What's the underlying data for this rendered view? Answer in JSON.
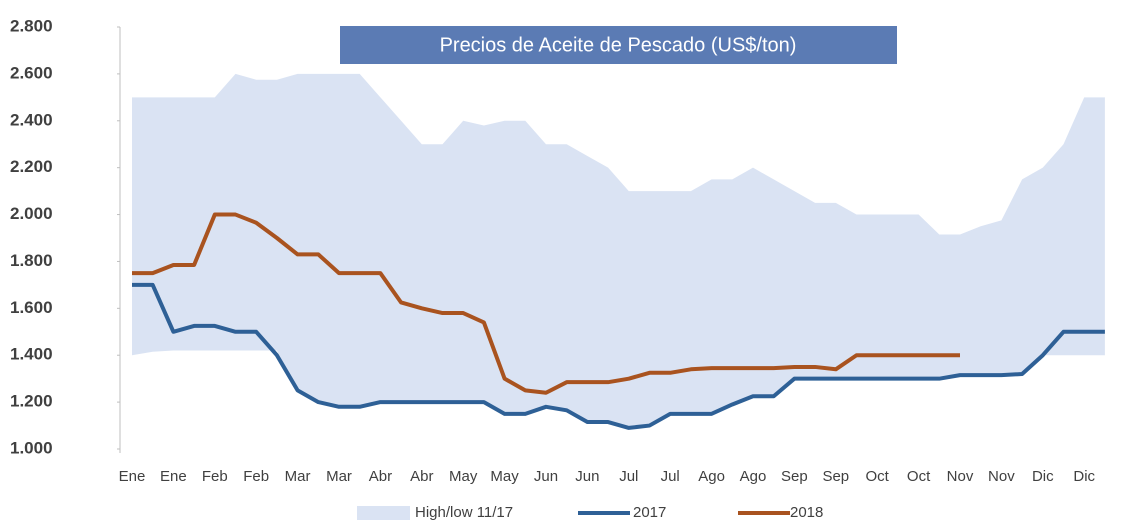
{
  "chart_data": {
    "type": "line",
    "title": "Precios de Aceite de Pescado (US$/ton)",
    "categories": [
      "Ene",
      null,
      "Ene",
      null,
      "Feb",
      null,
      "Feb",
      null,
      "Mar",
      null,
      "Mar",
      null,
      "Abr",
      null,
      "Abr",
      null,
      "May",
      null,
      "May",
      null,
      "Jun",
      null,
      "Jun",
      null,
      "Jul",
      null,
      "Jul",
      null,
      "Ago",
      null,
      "Ago",
      null,
      "Sep",
      null,
      "Sep",
      null,
      "Oct",
      null,
      "Oct",
      null,
      "Nov",
      null,
      "Nov",
      null,
      "Dic",
      null,
      "Dic",
      null
    ],
    "series": [
      {
        "name": "High/low 11/17",
        "color": "#dae3f3",
        "high": [
          2500,
          2500,
          2500,
          2500,
          2500,
          2600,
          2575,
          2575,
          2600,
          2600,
          2600,
          2600,
          2500,
          2400,
          2300,
          2300,
          2400,
          2380,
          2400,
          2400,
          2300,
          2300,
          2250,
          2200,
          2100,
          2100,
          2100,
          2100,
          2150,
          2150,
          2200,
          2150,
          2100,
          2050,
          2050,
          2000,
          2000,
          2000,
          2000,
          1915,
          1915,
          1950,
          1975,
          2150,
          2200,
          2300,
          2500,
          2500
        ],
        "low": [
          1400,
          1415,
          1420,
          1420,
          1420,
          1420,
          1420,
          1420,
          1250,
          1200,
          1180,
          1180,
          1200,
          1200,
          1200,
          1200,
          1200,
          1200,
          1150,
          1150,
          1180,
          1165,
          1115,
          1115,
          1090,
          1100,
          1150,
          1150,
          1150,
          1190,
          1225,
          1225,
          1300,
          1300,
          1300,
          1300,
          1300,
          1300,
          1300,
          1300,
          1315,
          1315,
          1315,
          1320,
          1400,
          1400,
          1400,
          1400
        ]
      },
      {
        "name": "2017",
        "color": "#2e6096",
        "values": [
          1700,
          1700,
          1500,
          1525,
          1525,
          1500,
          1500,
          1400,
          1250,
          1200,
          1180,
          1180,
          1200,
          1200,
          1200,
          1200,
          1200,
          1200,
          1150,
          1150,
          1180,
          1165,
          1115,
          1115,
          1090,
          1100,
          1150,
          1150,
          1150,
          1190,
          1225,
          1225,
          1300,
          1300,
          1300,
          1300,
          1300,
          1300,
          1300,
          1300,
          1315,
          1315,
          1315,
          1320,
          1400,
          1500,
          1500,
          1500
        ]
      },
      {
        "name": "2018",
        "color": "#a9531f",
        "values": [
          1750,
          1750,
          1785,
          1785,
          2000,
          2000,
          1965,
          1900,
          1830,
          1830,
          1750,
          1750,
          1750,
          1625,
          1600,
          1580,
          1580,
          1540,
          1300,
          1250,
          1240,
          1285,
          1285,
          1285,
          1300,
          1325,
          1325,
          1340,
          1345,
          1345,
          1345,
          1345,
          1350,
          1350,
          1340,
          1400,
          1400,
          1400,
          1400,
          1400,
          1400,
          null,
          null,
          null,
          null,
          null,
          null,
          null
        ]
      }
    ],
    "ylim": [
      1000,
      2800
    ],
    "yticks": [
      {
        "value": 1000,
        "label": "1.000"
      },
      {
        "value": 1200,
        "label": "1.200"
      },
      {
        "value": 1400,
        "label": "1.400"
      },
      {
        "value": 1600,
        "label": "1.600"
      },
      {
        "value": 1800,
        "label": "1.800"
      },
      {
        "value": 2000,
        "label": "2.000"
      },
      {
        "value": 2200,
        "label": "2.200"
      },
      {
        "value": 2400,
        "label": "2.400"
      },
      {
        "value": 2600,
        "label": "2.600"
      },
      {
        "value": 2800,
        "label": "2.800"
      }
    ]
  }
}
